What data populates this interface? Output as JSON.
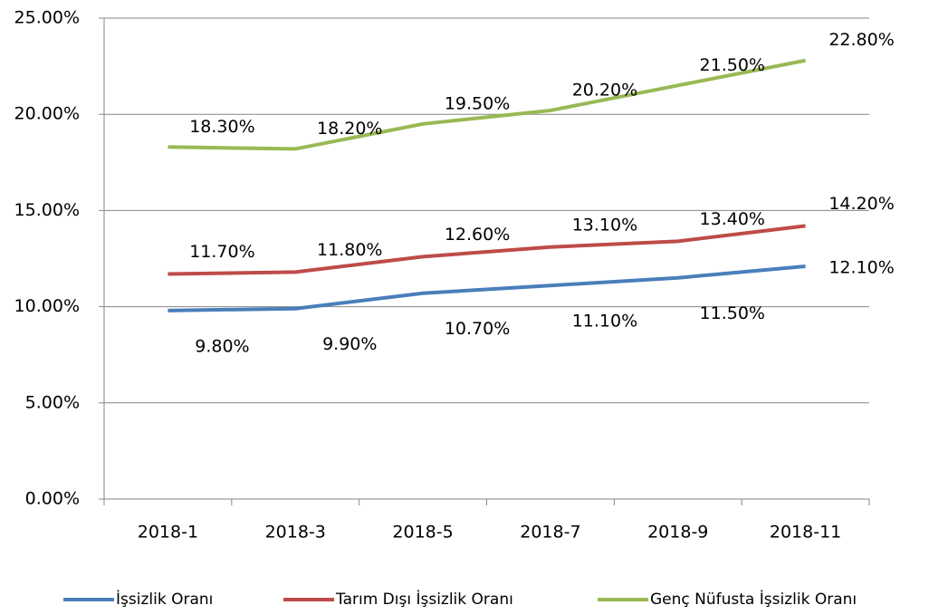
{
  "chart_data": {
    "type": "line",
    "categories": [
      "2018-1",
      "2018-3",
      "2018-5",
      "2018-7",
      "2018-9",
      "2018-11"
    ],
    "series": [
      {
        "name": "İşsizlik Oranı",
        "color": "#4a7ebb",
        "values": [
          9.8,
          9.9,
          10.7,
          11.1,
          11.5,
          12.1
        ],
        "value_labels": [
          "9.80%",
          "9.90%",
          "10.70%",
          "11.10%",
          "11.50%",
          "12.10%"
        ]
      },
      {
        "name": "Tarım Dışı İşsizlik Oranı",
        "color": "#be4b48",
        "values": [
          11.7,
          11.8,
          12.6,
          13.1,
          13.4,
          14.2
        ],
        "value_labels": [
          "11.70%",
          "11.80%",
          "12.60%",
          "13.10%",
          "13.40%",
          "14.20%"
        ]
      },
      {
        "name": "Genç Nüfusta İşsizlik Oranı",
        "color": "#98b954",
        "values": [
          18.3,
          18.2,
          19.5,
          20.2,
          21.5,
          22.8
        ],
        "value_labels": [
          "18.30%",
          "18.20%",
          "19.50%",
          "20.20%",
          "21.50%",
          "22.80%"
        ]
      }
    ],
    "ylim": [
      0,
      25
    ],
    "yticks": [
      {
        "value": 0,
        "label": "0.00%"
      },
      {
        "value": 5,
        "label": "5.00%"
      },
      {
        "value": 10,
        "label": "10.00%"
      },
      {
        "value": 15,
        "label": "15.00%"
      },
      {
        "value": 20,
        "label": "20.00%"
      },
      {
        "value": 25,
        "label": "25.00%"
      }
    ],
    "grid": true,
    "legend": "bottom"
  }
}
